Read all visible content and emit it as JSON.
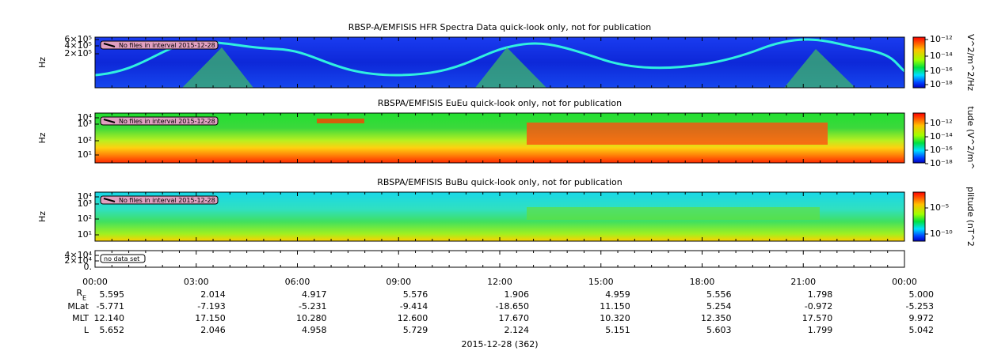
{
  "panels": [
    {
      "title": "RBSP-A/EMFISIS  HFR Spectra Data quick-look only, not for publication",
      "ylabel": "Hz",
      "yticks": [
        "6×10⁵",
        "4×10⁵",
        "2×10⁵"
      ],
      "note": "No files in interval 2015-12-28",
      "colorbar_label": "V^2/m^2/Hz",
      "colorbar_ticks": [
        "10⁻¹²",
        "10⁻¹⁴",
        "10⁻¹⁶",
        "10⁻¹⁸"
      ]
    },
    {
      "title": "RBSPA/EMFISIS  EuEu quick-look only, not for publication",
      "ylabel": "Hz",
      "yticks": [
        "10⁴",
        "10³",
        "10²",
        "10¹"
      ],
      "note": "No files in interval 2015-12-28",
      "colorbar_label": "tude (V^2/m^",
      "colorbar_ticks": [
        "10⁻¹²",
        "10⁻¹⁴",
        "10⁻¹⁶",
        "10⁻¹⁸"
      ]
    },
    {
      "title": "RBSPA/EMFISIS  BuBu quick-look only, not for publication",
      "ylabel": "Hz",
      "yticks": [
        "10⁴",
        "10³",
        "10²",
        "10¹"
      ],
      "note": "No files in interval 2015-12-28",
      "colorbar_label": "plitude (nT^2",
      "colorbar_ticks": [
        "10⁻⁵",
        "10⁻¹⁰"
      ]
    },
    {
      "yticks": [
        "4×10⁴",
        "2×10⁴",
        "0."
      ],
      "note": "no data set"
    }
  ],
  "time_ticks": [
    "00:00",
    "03:00",
    "06:00",
    "09:00",
    "12:00",
    "15:00",
    "18:00",
    "21:00",
    "00:00"
  ],
  "ephemeris": [
    {
      "label": "R",
      "sub": "E",
      "values": [
        "5.595",
        "2.014",
        "4.917",
        "5.576",
        "1.906",
        "4.959",
        "5.556",
        "1.798",
        "5.000"
      ]
    },
    {
      "label": "MLat",
      "values": [
        "-5.771",
        "-7.193",
        "-5.231",
        "-9.414",
        "-18.650",
        "11.150",
        "5.254",
        "-0.972",
        "-5.253"
      ]
    },
    {
      "label": "MLT",
      "values": [
        "12.140",
        "17.150",
        "10.280",
        "12.600",
        "17.670",
        "10.320",
        "12.350",
        "17.570",
        "9.972"
      ]
    },
    {
      "label": "L",
      "values": [
        "5.652",
        "2.046",
        "4.958",
        "5.729",
        "2.124",
        "5.151",
        "5.603",
        "1.799",
        "5.042"
      ]
    }
  ],
  "footer": "2015-12-28 (362)"
}
